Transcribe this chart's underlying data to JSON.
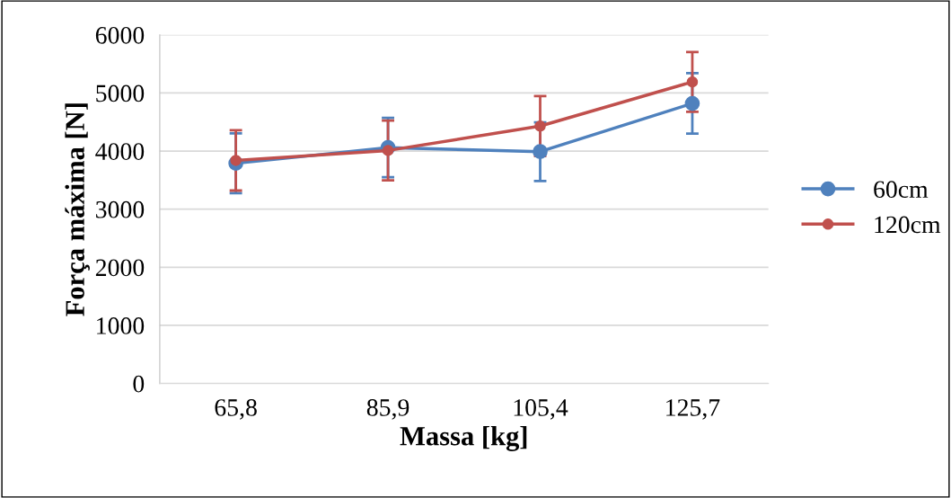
{
  "chart_data": {
    "type": "line",
    "xlabel": "Massa [kg]",
    "ylabel": "Força máxima [N]",
    "categories": [
      "65,8",
      "85,9",
      "105,4",
      "125,7"
    ],
    "series": [
      {
        "name": "60cm",
        "color": "#4f81bd",
        "values": [
          3790,
          4060,
          3990,
          4820
        ],
        "errors": [
          515,
          510,
          505,
          520
        ]
      },
      {
        "name": "120cm",
        "color": "#c0504d",
        "values": [
          3840,
          4010,
          4430,
          5190
        ],
        "errors": [
          520,
          515,
          515,
          515
        ]
      }
    ],
    "ylim": [
      0,
      6000
    ],
    "yticks": [
      0,
      1000,
      2000,
      3000,
      4000,
      5000,
      6000
    ],
    "grid": "y",
    "legend": "right",
    "marker": "circle",
    "line_style": "solid"
  }
}
